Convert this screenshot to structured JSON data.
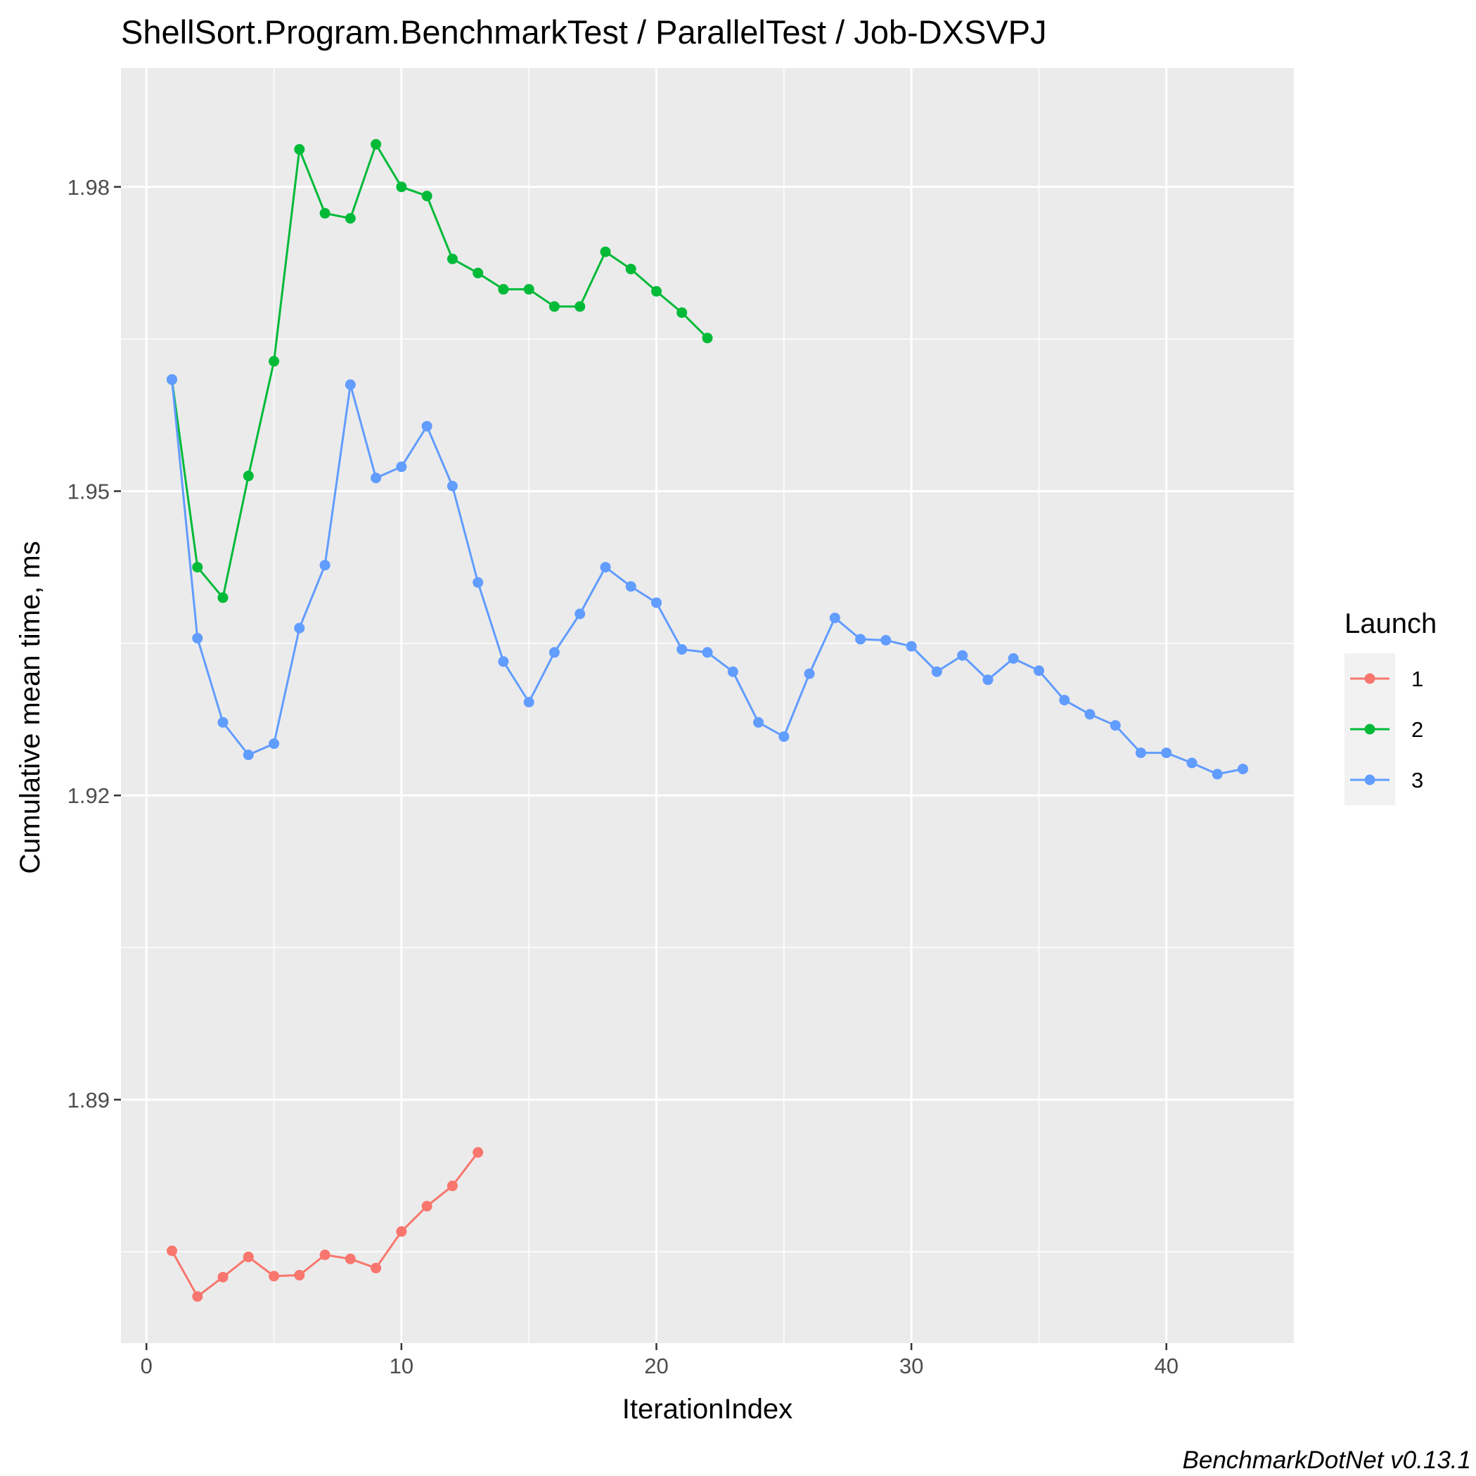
{
  "chart_data": {
    "type": "line",
    "title": "ShellSort.Program.BenchmarkTest / ParallelTest / Job-DXSVPJ",
    "xlabel": "IterationIndex",
    "ylabel": "Cumulative mean time, ms",
    "xlim": [
      -1,
      45
    ],
    "ylim": [
      1.866,
      1.9917
    ],
    "x_ticks": [
      0,
      10,
      20,
      30,
      40
    ],
    "y_ticks": [
      1.89,
      1.92,
      1.95,
      1.98
    ],
    "y_minor_ticks": [
      1.875,
      1.905,
      1.935,
      1.965
    ],
    "x_minor_ticks": [
      5,
      15,
      25,
      35
    ],
    "grid": true,
    "legend": {
      "title": "Launch",
      "position": "right"
    },
    "caption": "BenchmarkDotNet v0.13.1",
    "colors": {
      "panel": "#ebebeb",
      "grid": "#ffffff"
    },
    "series": [
      {
        "name": "1",
        "color": "#f8766d",
        "x": [
          1,
          2,
          3,
          4,
          5,
          6,
          7,
          8,
          9,
          10,
          11,
          12,
          13
        ],
        "y": [
          1.8751,
          1.8706,
          1.8725,
          1.8745,
          1.8726,
          1.8727,
          1.8747,
          1.8743,
          1.8734,
          1.877,
          1.8795,
          1.8815,
          1.8848
        ]
      },
      {
        "name": "2",
        "color": "#00ba38",
        "x": [
          1,
          2,
          3,
          4,
          5,
          6,
          7,
          8,
          9,
          10,
          11,
          12,
          13,
          14,
          15,
          16,
          17,
          18,
          19,
          20,
          21,
          22
        ],
        "y": [
          1.961,
          1.9425,
          1.9395,
          1.9515,
          1.9628,
          1.9837,
          1.9774,
          1.9769,
          1.9842,
          1.98,
          1.9791,
          1.9729,
          1.9715,
          1.9699,
          1.9699,
          1.9682,
          1.9682,
          1.9736,
          1.9719,
          1.9697,
          1.9676,
          1.9651
        ]
      },
      {
        "name": "3",
        "color": "#619cff",
        "x": [
          1,
          2,
          3,
          4,
          5,
          6,
          7,
          8,
          9,
          10,
          11,
          12,
          13,
          14,
          15,
          16,
          17,
          18,
          19,
          20,
          21,
          22,
          23,
          24,
          25,
          26,
          27,
          28,
          29,
          30,
          31,
          32,
          33,
          34,
          35,
          36,
          37,
          38,
          39,
          40,
          41,
          42,
          43
        ],
        "y": [
          1.961,
          1.9355,
          1.9272,
          1.924,
          1.9251,
          1.9365,
          1.9427,
          1.9605,
          1.9513,
          1.9524,
          1.9564,
          1.9505,
          1.941,
          1.9332,
          1.9292,
          1.9341,
          1.9379,
          1.9425,
          1.9406,
          1.939,
          1.9344,
          1.9341,
          1.9322,
          1.9272,
          1.9258,
          1.932,
          1.9375,
          1.9354,
          1.9353,
          1.9347,
          1.9322,
          1.9338,
          1.9314,
          1.9335,
          1.9323,
          1.9294,
          1.928,
          1.9269,
          1.9242,
          1.9242,
          1.9232,
          1.9221,
          1.9226
        ]
      }
    ]
  }
}
